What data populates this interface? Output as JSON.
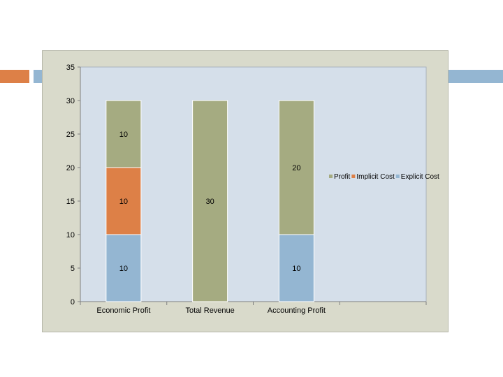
{
  "chart_data": {
    "type": "bar",
    "stacked": true,
    "categories": [
      "Economic Profit",
      "Total Revenue",
      "Accounting Profit"
    ],
    "series": [
      {
        "name": "Explicit Cost",
        "color": "#94b6d2",
        "values": [
          10,
          0,
          10
        ]
      },
      {
        "name": "Implicit Cost",
        "color": "#dd8047",
        "values": [
          10,
          0,
          0
        ]
      },
      {
        "name": "Profit",
        "color": "#a5ab81",
        "values": [
          10,
          30,
          20
        ]
      }
    ],
    "data_labels": [
      {
        "category": 0,
        "series": 0,
        "text": "10"
      },
      {
        "category": 0,
        "series": 1,
        "text": "10"
      },
      {
        "category": 0,
        "series": 2,
        "text": "10"
      },
      {
        "category": 1,
        "series": 2,
        "text": "30"
      },
      {
        "category": 2,
        "series": 0,
        "text": "10"
      },
      {
        "category": 2,
        "series": 2,
        "text": "20"
      }
    ],
    "ylim": [
      0,
      35
    ],
    "yticks": [
      "0",
      "5",
      "10",
      "15",
      "20",
      "25",
      "30",
      "35"
    ],
    "xlabel": "",
    "ylabel": "",
    "title": "",
    "legend_position": "right",
    "legend_order": [
      "Profit",
      "Implicit Cost",
      "Explicit Cost"
    ],
    "plot_background": "#d5dfea",
    "grid": false
  }
}
